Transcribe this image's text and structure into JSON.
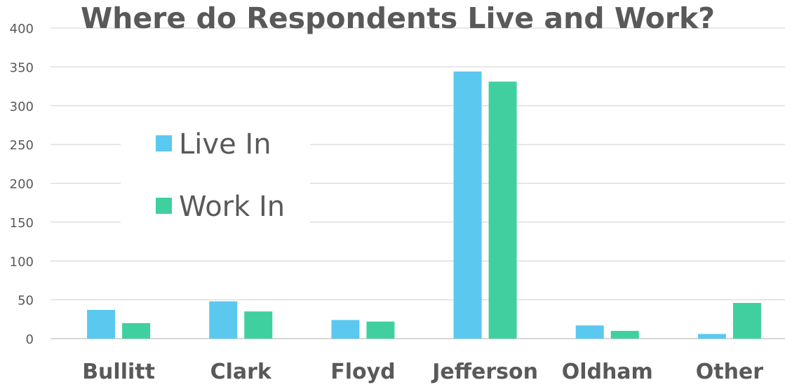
{
  "chart_data": {
    "type": "bar",
    "title": "Where do Respondents Live and Work?",
    "xlabel": "",
    "ylabel": "",
    "categories": [
      "Bullitt",
      "Clark",
      "Floyd",
      "Jefferson",
      "Oldham",
      "Other"
    ],
    "series": [
      {
        "name": "Live In",
        "color": "#5bc8f0",
        "values": [
          37,
          48,
          24,
          344,
          17,
          6
        ]
      },
      {
        "name": "Work In",
        "color": "#40d0a0",
        "values": [
          20,
          35,
          22,
          331,
          10,
          46
        ]
      }
    ],
    "ylim": [
      0,
      400
    ],
    "yticks": [
      0,
      50,
      100,
      150,
      200,
      250,
      300,
      350,
      400
    ],
    "grid": true,
    "legend_position": "upper-left"
  }
}
